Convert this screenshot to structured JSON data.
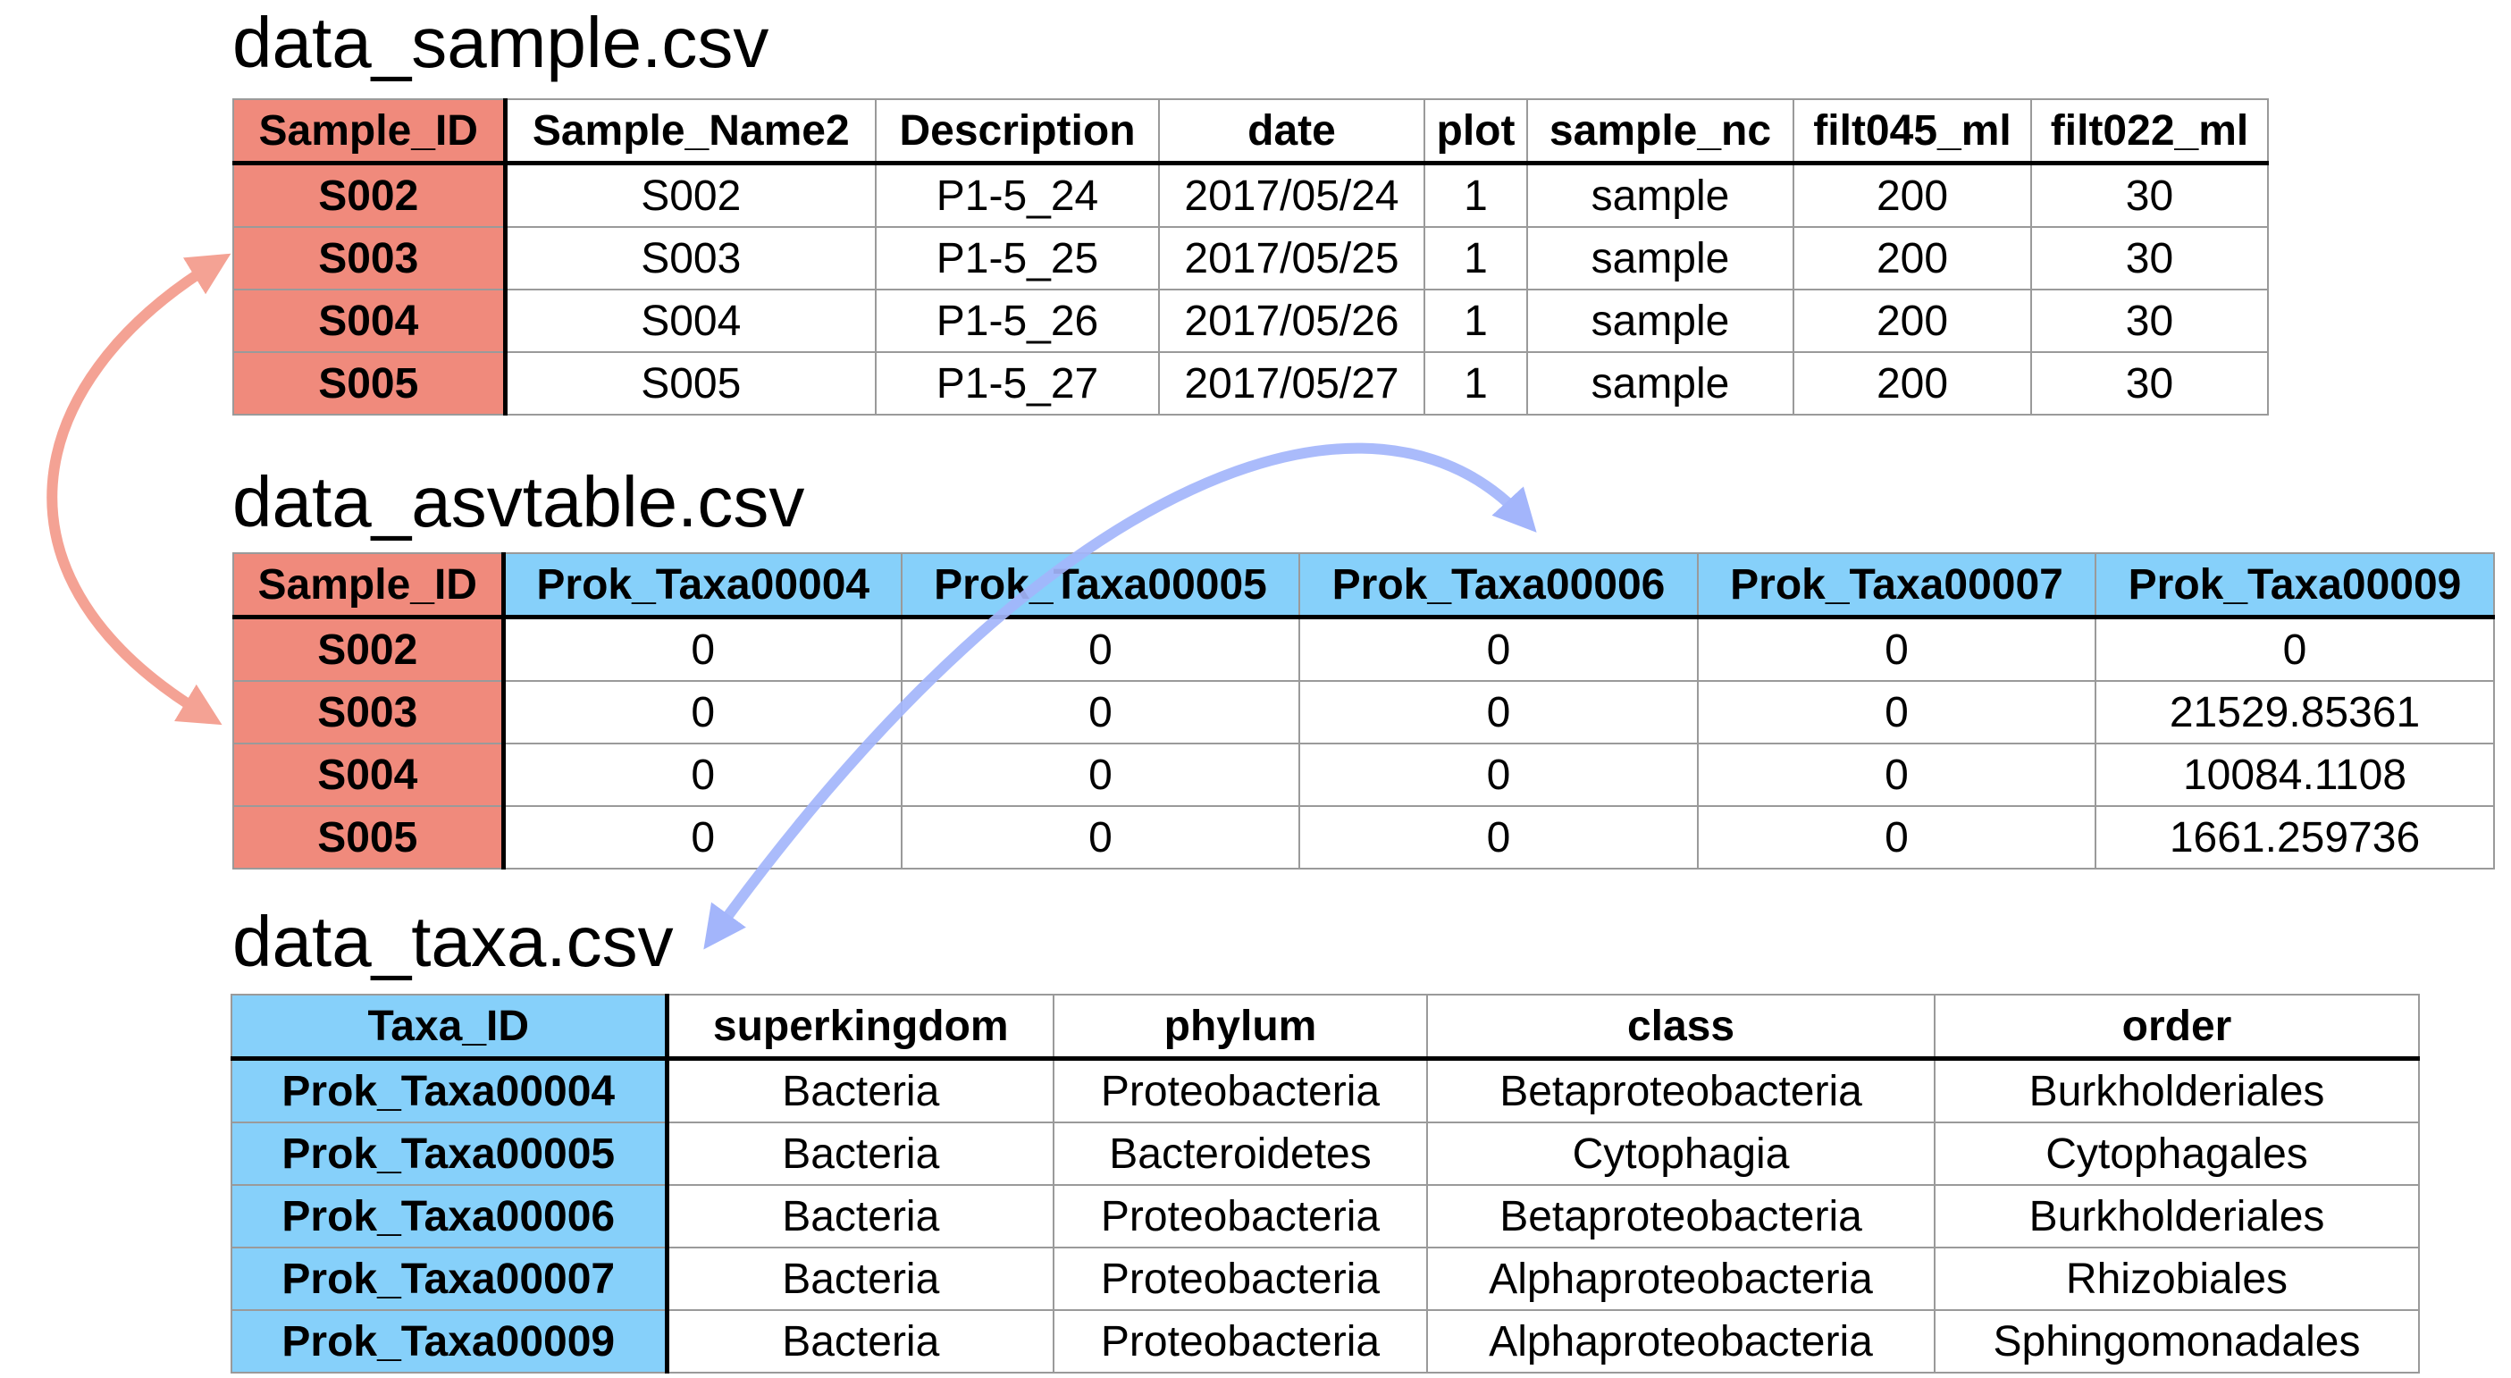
{
  "sample_table": {
    "title": "data_sample.csv",
    "columns": [
      "Sample_ID",
      "Sample_Name2",
      "Description",
      "date",
      "plot",
      "sample_nc",
      "filt045_ml",
      "filt022_ml"
    ],
    "rows": [
      [
        "S002",
        "S002",
        "P1-5_24",
        "2017/05/24",
        "1",
        "sample",
        "200",
        "30"
      ],
      [
        "S003",
        "S003",
        "P1-5_25",
        "2017/05/25",
        "1",
        "sample",
        "200",
        "30"
      ],
      [
        "S004",
        "S004",
        "P1-5_26",
        "2017/05/26",
        "1",
        "sample",
        "200",
        "30"
      ],
      [
        "S005",
        "S005",
        "P1-5_27",
        "2017/05/27",
        "1",
        "sample",
        "200",
        "30"
      ]
    ]
  },
  "asv_table": {
    "title": "data_asvtable.csv",
    "columns": [
      "Sample_ID",
      "Prok_Taxa00004",
      "Prok_Taxa00005",
      "Prok_Taxa00006",
      "Prok_Taxa00007",
      "Prok_Taxa00009"
    ],
    "rows": [
      [
        "S002",
        "0",
        "0",
        "0",
        "0",
        "0"
      ],
      [
        "S003",
        "0",
        "0",
        "0",
        "0",
        "21529.85361"
      ],
      [
        "S004",
        "0",
        "0",
        "0",
        "0",
        "10084.1108"
      ],
      [
        "S005",
        "0",
        "0",
        "0",
        "0",
        "1661.259736"
      ]
    ]
  },
  "taxa_table": {
    "title": "data_taxa.csv",
    "columns": [
      "Taxa_ID",
      "superkingdom",
      "phylum",
      "class",
      "order"
    ],
    "rows": [
      [
        "Prok_Taxa00004",
        "Bacteria",
        "Proteobacteria",
        "Betaproteobacteria",
        "Burkholderiales"
      ],
      [
        "Prok_Taxa00005",
        "Bacteria",
        "Bacteroidetes",
        "Cytophagia",
        "Cytophagales"
      ],
      [
        "Prok_Taxa00006",
        "Bacteria",
        "Proteobacteria",
        "Betaproteobacteria",
        "Burkholderiales"
      ],
      [
        "Prok_Taxa00007",
        "Bacteria",
        "Proteobacteria",
        "Alphaproteobacteria",
        "Rhizobiales"
      ],
      [
        "Prok_Taxa00009",
        "Bacteria",
        "Proteobacteria",
        "Alphaproteobacteria",
        "Sphingomonadales"
      ]
    ]
  },
  "colors": {
    "sample_key": "#f08a7c",
    "taxa_key": "#86d0fa",
    "sample_link_arrow": "#f4a294",
    "taxa_link_arrow": "#a3b5fb"
  },
  "icons": [
    "double-headed-arrow-sample-link",
    "double-headed-arrow-taxa-link"
  ]
}
